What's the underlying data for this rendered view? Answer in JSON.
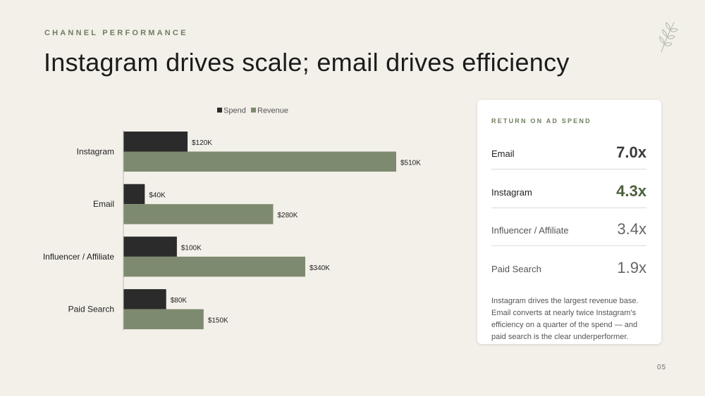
{
  "header": {
    "eyebrow": "CHANNEL PERFORMANCE",
    "title": "Instagram drives scale; email drives efficiency"
  },
  "chart_data": {
    "type": "bar",
    "orientation": "horizontal",
    "categories": [
      "Instagram",
      "Email",
      "Influencer / Affiliate",
      "Paid Search"
    ],
    "series": [
      {
        "name": "Spend",
        "values": [
          120,
          40,
          100,
          80
        ],
        "labels": [
          "$120K",
          "$40K",
          "$100K",
          "$80K"
        ],
        "color": "#2b2b2b"
      },
      {
        "name": "Revenue",
        "values": [
          510,
          280,
          340,
          150
        ],
        "labels": [
          "$510K",
          "$280K",
          "$340K",
          "$150K"
        ],
        "color": "#7e8a6f"
      }
    ],
    "unit": "$K",
    "xlim": [
      0,
      510
    ],
    "legend": "top-center",
    "grid": false
  },
  "roas": {
    "heading": "RETURN ON AD SPEND",
    "rows": [
      {
        "label": "Email",
        "value": "7.0x",
        "style": "strong-dark"
      },
      {
        "label": "Instagram",
        "value": "4.3x",
        "style": "strong-green"
      },
      {
        "label": "Influencer / Affiliate",
        "value": "3.4x",
        "style": "muted"
      },
      {
        "label": "Paid Search",
        "value": "1.9x",
        "style": "muted"
      }
    ],
    "note": "Instagram drives the largest revenue base. Email converts at nearly twice Instagram's efficiency on a quarter of the spend — and paid search is the clear underperformer."
  },
  "colors": {
    "accent": "#6e7e5f",
    "spend": "#2b2b2b",
    "revenue": "#7e8a6f",
    "background": "#f3f0e9"
  },
  "footer": {
    "page": "05"
  }
}
